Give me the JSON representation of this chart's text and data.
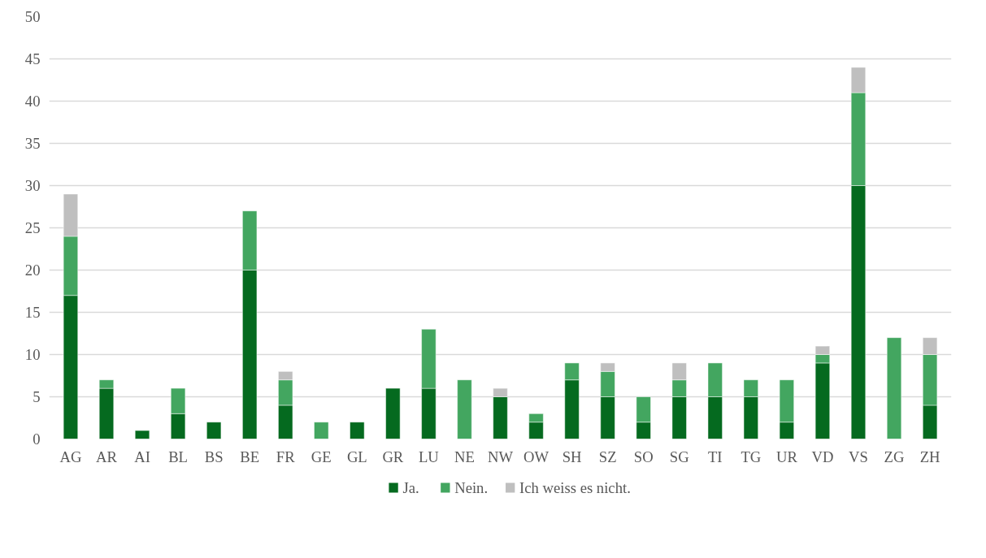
{
  "chart_data": {
    "type": "bar",
    "stacked": true,
    "categories": [
      "AG",
      "AR",
      "AI",
      "BL",
      "BS",
      "BE",
      "FR",
      "GE",
      "GL",
      "GR",
      "LU",
      "NE",
      "NW",
      "OW",
      "SH",
      "SZ",
      "SO",
      "SG",
      "TI",
      "TG",
      "UR",
      "VD",
      "VS",
      "ZG",
      "ZH"
    ],
    "series": [
      {
        "name": "Ja.",
        "color": "#056a1f",
        "values": [
          17,
          6,
          1,
          3,
          2,
          20,
          4,
          0,
          2,
          6,
          6,
          0,
          5,
          2,
          7,
          5,
          2,
          5,
          5,
          5,
          2,
          9,
          30,
          0,
          4
        ]
      },
      {
        "name": "Nein.",
        "color": "#43a660",
        "values": [
          7,
          1,
          0,
          3,
          0,
          7,
          3,
          2,
          0,
          0,
          7,
          7,
          0,
          1,
          2,
          3,
          3,
          2,
          4,
          2,
          5,
          1,
          11,
          12,
          6
        ]
      },
      {
        "name": "Ich weiss es nicht.",
        "color": "#bfbfbf",
        "values": [
          5,
          0,
          0,
          0,
          0,
          0,
          1,
          0,
          0,
          0,
          0,
          0,
          1,
          0,
          0,
          1,
          0,
          2,
          0,
          0,
          0,
          1,
          3,
          0,
          2
        ]
      }
    ],
    "ylim": [
      0,
      50
    ],
    "yticks": [
      0,
      5,
      10,
      15,
      20,
      25,
      30,
      35,
      40,
      45,
      50
    ],
    "grid": "y",
    "legend": "bottom"
  }
}
